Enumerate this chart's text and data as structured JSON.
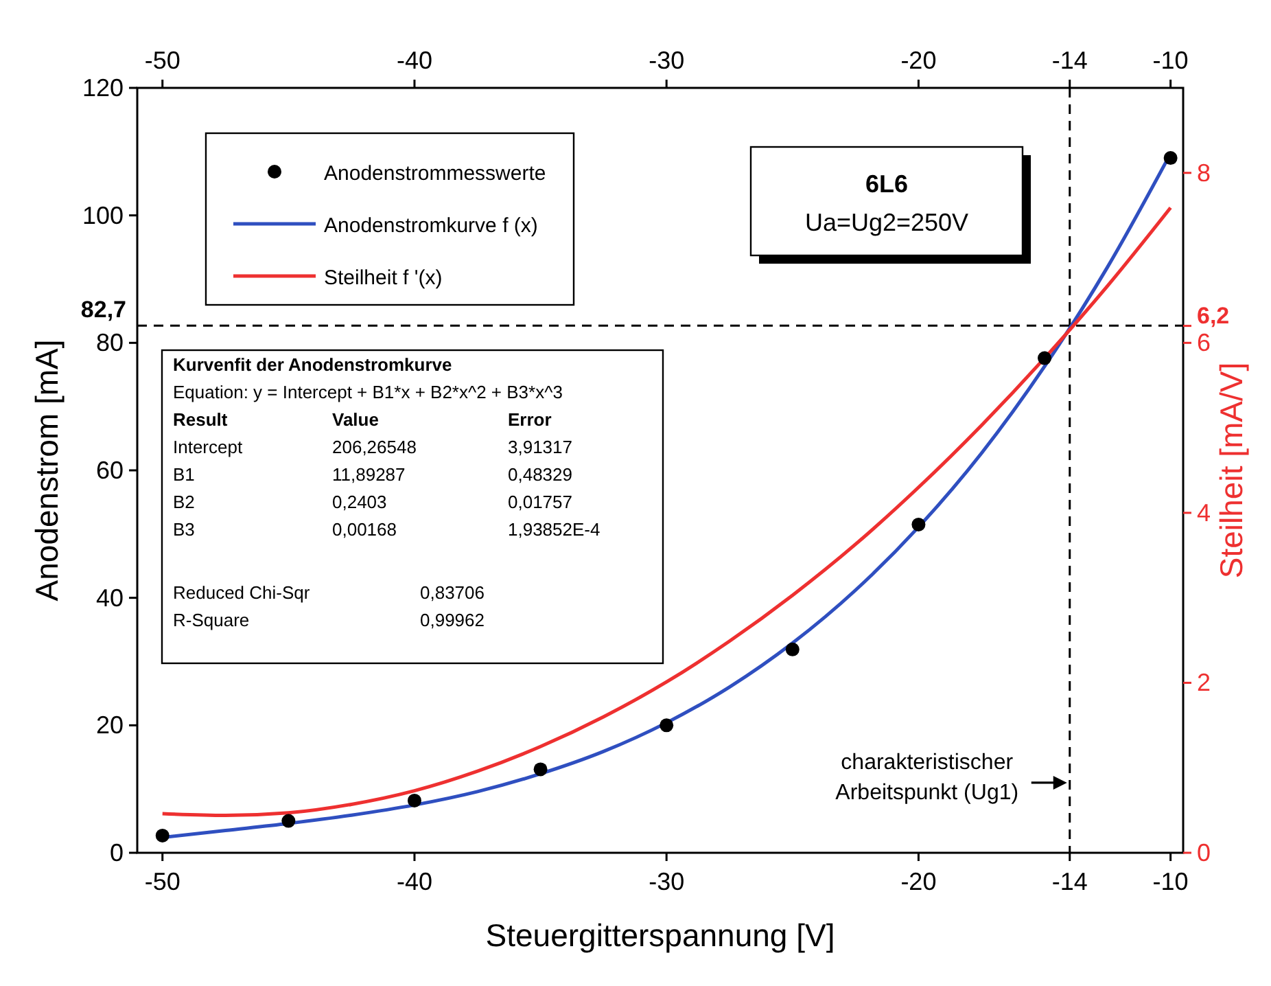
{
  "chart_data": {
    "type": "line",
    "xlabel": "Steuergitterspannung [V]",
    "ylabel": "Anodenstrom [mA]",
    "y2label": "Steilheit [mA/V]",
    "xlim": [
      -51,
      -9.5
    ],
    "xticks": [
      -50,
      -40,
      -30,
      -20,
      -14,
      -10
    ],
    "x2lim": [
      -51,
      -9.5
    ],
    "x2ticks": [
      -50,
      -40,
      -30,
      -20,
      -14,
      -10
    ],
    "ylim": [
      0,
      120
    ],
    "yticks": [
      0,
      20,
      40,
      60,
      80,
      100,
      120
    ],
    "y2lim": [
      0,
      9
    ],
    "y2ticks": [
      0,
      2,
      4,
      6,
      {
        "value": 6.2,
        "label": "6,2"
      },
      8
    ],
    "legend": "top left",
    "series": [
      {
        "name": "Anodenstrommesswerte",
        "type": "scatter",
        "marker": "circle",
        "color": "#000000",
        "x": [
          -50,
          -45,
          -40,
          -35,
          -30,
          -25,
          -20,
          -15,
          -10
        ],
        "values": [
          2.7,
          5,
          8.2,
          13.1,
          20,
          31.9,
          51.5,
          77.6,
          109
        ]
      },
      {
        "name": "Anodenstromkurve f (x)",
        "type": "line",
        "color": "#2f4fc0",
        "x": [
          -50,
          -47.5,
          -45,
          -42.5,
          -40,
          -37.5,
          -35,
          -32.5,
          -30,
          -27.5,
          -25,
          -22.5,
          -20,
          -17.5,
          -15,
          -12.5,
          -10
        ],
        "values": [
          2.4,
          3.5,
          4.6,
          5.9,
          7.5,
          9.6,
          12.4,
          15.9,
          20.4,
          26,
          32.9,
          41.2,
          51.1,
          62.7,
          76.3,
          91.9,
          109.7
        ]
      },
      {
        "name": "Steilheit f '(x)",
        "type": "line",
        "axis": "y2",
        "color": "#ee3030",
        "x": [
          -50,
          -47.5,
          -45,
          -42.5,
          -40,
          -37.5,
          -35,
          -32.5,
          -30,
          -27.5,
          -25,
          -22.5,
          -20,
          -17.5,
          -15,
          -12.5,
          -10
        ],
        "values": [
          0.46,
          0.44,
          0.47,
          0.57,
          0.73,
          0.96,
          1.25,
          1.6,
          2.01,
          2.49,
          3.03,
          3.63,
          4.3,
          5.03,
          5.82,
          6.67,
          7.59
        ]
      }
    ],
    "ref_lines": [
      {
        "axis": "x",
        "value": -14,
        "line_style": "dashed",
        "color": "#000000"
      },
      {
        "axis": "y",
        "value": 82.7,
        "label": "82,7",
        "line_style": "dashed",
        "color": "#000000"
      }
    ],
    "annotations": [
      "6L6",
      "Ua=Ug2=250V",
      "Kurvenfit der Anodenstromkurve",
      "Equation: y = Intercept + B1*x + B2*x^2 + B3*x^3",
      "Result\tValue\tError",
      "Intercept\t206,26548\t3,91317",
      "B1\t11,89287\t0,48329",
      "B2\t0,2403\t0,01757",
      "B3\t0,00168\t1,93852E-4",
      "Reduced Chi-Sqr\t0,83706",
      "R-Square\t0,99962",
      {
        "text": "charakteristischer Arbeitspunkt (Ug1)",
        "x": -14,
        "y": 11
      }
    ]
  }
}
